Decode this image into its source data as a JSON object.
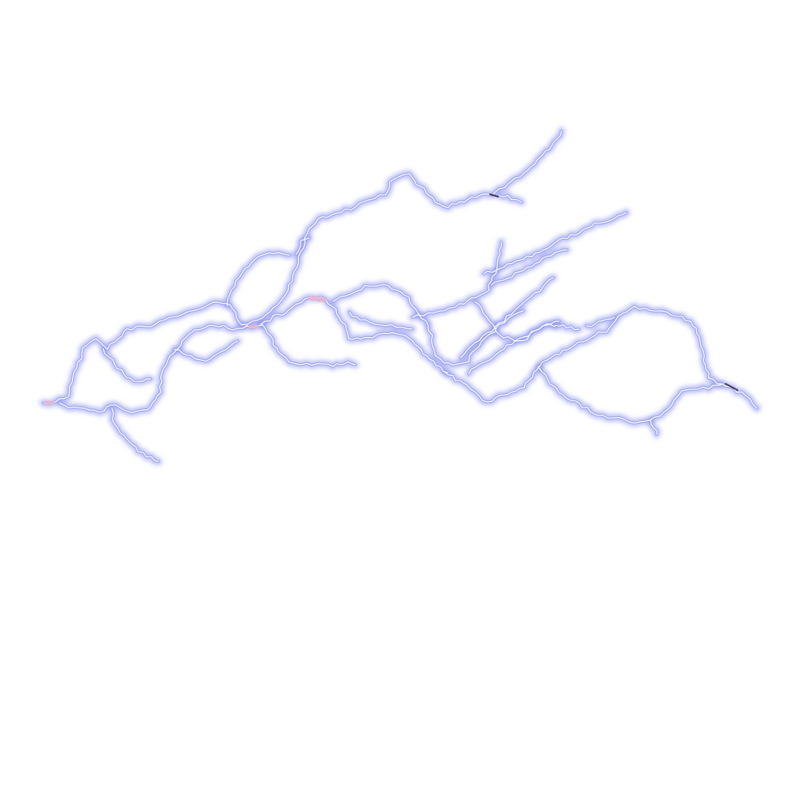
{
  "scene": {
    "subject": "lightning-bolts",
    "background_color": "#ffffff",
    "glow_color": "#7d85f0",
    "mid_color": "#9aa0f5",
    "core_color": "#ffffff",
    "hot_color": "#e8b4c8",
    "spark_color": "#4a3a5a"
  }
}
